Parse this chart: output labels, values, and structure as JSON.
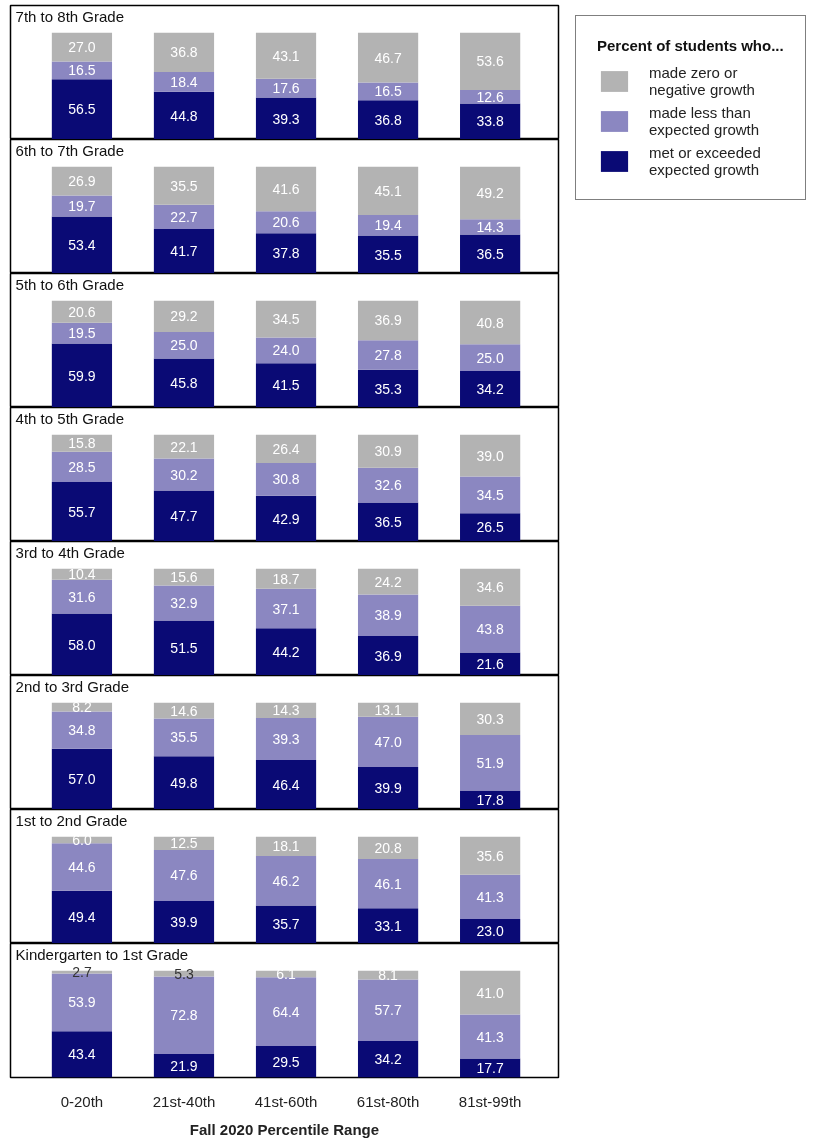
{
  "chart_data": [
    {
      "type": "bar",
      "title": "7th to 8th Grade",
      "stacked": true,
      "categories": [
        null,
        null,
        null,
        null,
        null
      ],
      "series": [
        {
          "name": "met or exceeded expected growth",
          "color": "#0a0a75",
          "values": [
            56.5,
            44.8,
            39.3,
            36.8,
            33.8
          ],
          "value_labels": [
            "56.5",
            "44.8",
            "39.3",
            "36.8",
            "33.8"
          ]
        },
        {
          "name": "made less than expected growth",
          "color": "#8b87c1",
          "values": [
            16.5,
            18.4,
            17.6,
            16.5,
            12.6
          ],
          "value_labels": [
            "16.5",
            "18.4",
            "17.6",
            "16.5",
            "12.6"
          ]
        },
        {
          "name": "made zero or negative growth",
          "color": "#b3b3b3",
          "values": [
            27.0,
            36.8,
            43.1,
            46.7,
            53.6
          ],
          "value_labels": [
            "27.0",
            "36.8",
            "43.1",
            "46.7",
            "53.6"
          ]
        }
      ],
      "tick_labels": false,
      "legend": "right",
      "legend_title": "Percent of students who..."
    },
    {
      "type": "bar",
      "title": "6th to 7th Grade",
      "stacked": true,
      "categories": [
        null,
        null,
        null,
        null,
        null
      ],
      "series": [
        {
          "color": "#0a0a75",
          "values": [
            53.4,
            41.7,
            37.8,
            35.5,
            36.5
          ],
          "value_labels": [
            "53.4",
            "41.7",
            "37.8",
            "35.5",
            "36.5"
          ]
        },
        {
          "color": "#8b87c1",
          "values": [
            19.7,
            22.7,
            20.6,
            19.4,
            14.3
          ],
          "value_labels": [
            "19.7",
            "22.7",
            "20.6",
            "19.4",
            "14.3"
          ]
        },
        {
          "color": "#b3b3b3",
          "values": [
            26.9,
            35.5,
            41.6,
            45.1,
            49.2
          ],
          "value_labels": [
            "26.9",
            "35.5",
            "41.6",
            "45.1",
            "49.2"
          ]
        }
      ],
      "tick_labels": false
    },
    {
      "type": "bar",
      "title": "5th to 6th Grade",
      "stacked": true,
      "categories": [
        null,
        null,
        null,
        null,
        null
      ],
      "series": [
        {
          "color": "#0a0a75",
          "values": [
            59.9,
            45.8,
            41.5,
            35.3,
            34.2
          ],
          "value_labels": [
            "59.9",
            "45.8",
            "41.5",
            "35.3",
            "34.2"
          ]
        },
        {
          "color": "#8b87c1",
          "values": [
            19.5,
            25.0,
            24.0,
            27.8,
            25.0
          ],
          "value_labels": [
            "19.5",
            "25.0",
            "24.0",
            "27.8",
            "25.0"
          ]
        },
        {
          "color": "#b3b3b3",
          "values": [
            20.6,
            29.2,
            34.5,
            36.9,
            40.8
          ],
          "value_labels": [
            "20.6",
            "29.2",
            "34.5",
            "36.9",
            "40.8"
          ]
        }
      ],
      "tick_labels": false
    },
    {
      "type": "bar",
      "title": "4th to 5th Grade",
      "stacked": true,
      "categories": [
        null,
        null,
        null,
        null,
        null
      ],
      "series": [
        {
          "color": "#0a0a75",
          "values": [
            55.7,
            47.7,
            42.9,
            36.5,
            26.5
          ],
          "value_labels": [
            "55.7",
            "47.7",
            "42.9",
            "36.5",
            "26.5"
          ]
        },
        {
          "color": "#8b87c1",
          "values": [
            28.5,
            30.2,
            30.8,
            32.6,
            34.5
          ],
          "value_labels": [
            "28.5",
            "30.2",
            "30.8",
            "32.6",
            "34.5"
          ]
        },
        {
          "color": "#b3b3b3",
          "values": [
            15.8,
            22.1,
            26.4,
            30.9,
            39.0
          ],
          "value_labels": [
            "15.8",
            "22.1",
            "26.4",
            "30.9",
            "39.0"
          ]
        }
      ],
      "tick_labels": false
    },
    {
      "type": "bar",
      "title": "3rd to 4th Grade",
      "stacked": true,
      "categories": [
        null,
        null,
        null,
        null,
        null
      ],
      "series": [
        {
          "color": "#0a0a75",
          "values": [
            58.0,
            51.5,
            44.2,
            36.9,
            21.6
          ],
          "value_labels": [
            "58.0",
            "51.5",
            "44.2",
            "36.9",
            "21.6"
          ]
        },
        {
          "color": "#8b87c1",
          "values": [
            31.6,
            32.9,
            37.1,
            38.9,
            43.8
          ],
          "value_labels": [
            "31.6",
            "32.9",
            "37.1",
            "38.9",
            "43.8"
          ]
        },
        {
          "color": "#b3b3b3",
          "values": [
            10.4,
            15.6,
            18.7,
            24.2,
            34.6
          ],
          "value_labels": [
            "10.4",
            "15.6",
            "18.7",
            "24.2",
            "34.6"
          ]
        }
      ],
      "tick_labels": false
    },
    {
      "type": "bar",
      "title": "2nd to 3rd Grade",
      "stacked": true,
      "categories": [
        null,
        null,
        null,
        null,
        null
      ],
      "series": [
        {
          "color": "#0a0a75",
          "values": [
            57.0,
            49.8,
            46.4,
            39.9,
            17.8
          ],
          "value_labels": [
            "57.0",
            "49.8",
            "46.4",
            "39.9",
            "17.8"
          ]
        },
        {
          "color": "#8b87c1",
          "values": [
            34.8,
            35.5,
            39.3,
            47.0,
            51.9
          ],
          "value_labels": [
            "34.8",
            "35.5",
            "39.3",
            "47.0",
            "51.9"
          ]
        },
        {
          "color": "#b3b3b3",
          "values": [
            8.2,
            14.6,
            14.3,
            13.1,
            30.3
          ],
          "value_labels": [
            "8.2",
            "14.6",
            "14.3",
            "13.1",
            "30.3"
          ]
        }
      ],
      "tick_labels": false
    },
    {
      "type": "bar",
      "title": "1st to 2nd Grade",
      "stacked": true,
      "categories": [
        null,
        null,
        null,
        null,
        null
      ],
      "series": [
        {
          "color": "#0a0a75",
          "values": [
            49.4,
            39.9,
            35.7,
            33.1,
            23.0
          ],
          "value_labels": [
            "49.4",
            "39.9",
            "35.7",
            "33.1",
            "23.0"
          ]
        },
        {
          "color": "#8b87c1",
          "values": [
            44.6,
            47.6,
            46.2,
            46.1,
            41.3
          ],
          "value_labels": [
            "44.6",
            "47.6",
            "46.2",
            "46.1",
            "41.3"
          ]
        },
        {
          "color": "#b3b3b3",
          "values": [
            6.0,
            12.5,
            18.1,
            20.8,
            35.6
          ],
          "value_labels": [
            "6.0",
            "12.5",
            "18.1",
            "20.8",
            "35.6"
          ]
        }
      ],
      "tick_labels": false
    },
    {
      "type": "bar",
      "title": "Kindergarten to 1st Grade",
      "xlabel": "Fall 2020 Percentile Range",
      "stacked": true,
      "categories": [
        "0-20th",
        "21st-40th",
        "41st-60th",
        "61st-80th",
        "81st-99th"
      ],
      "series": [
        {
          "color": "#0a0a75",
          "values": [
            43.4,
            21.9,
            29.5,
            34.2,
            17.7
          ],
          "value_labels": [
            "43.4",
            "21.9",
            "29.5",
            "34.2",
            "17.7"
          ]
        },
        {
          "color": "#8b87c1",
          "values": [
            53.9,
            72.8,
            64.4,
            57.7,
            41.3
          ],
          "value_labels": [
            "53.9",
            "72.8",
            "64.4",
            "57.7",
            "41.3"
          ]
        },
        {
          "color": "#b3b3b3",
          "values": [
            2.7,
            5.3,
            6.1,
            8.1,
            41.0
          ],
          "value_labels": [
            "2.7",
            "5.3",
            "6.1",
            "8.1",
            "41.0"
          ]
        }
      ],
      "tick_labels": "x"
    }
  ]
}
